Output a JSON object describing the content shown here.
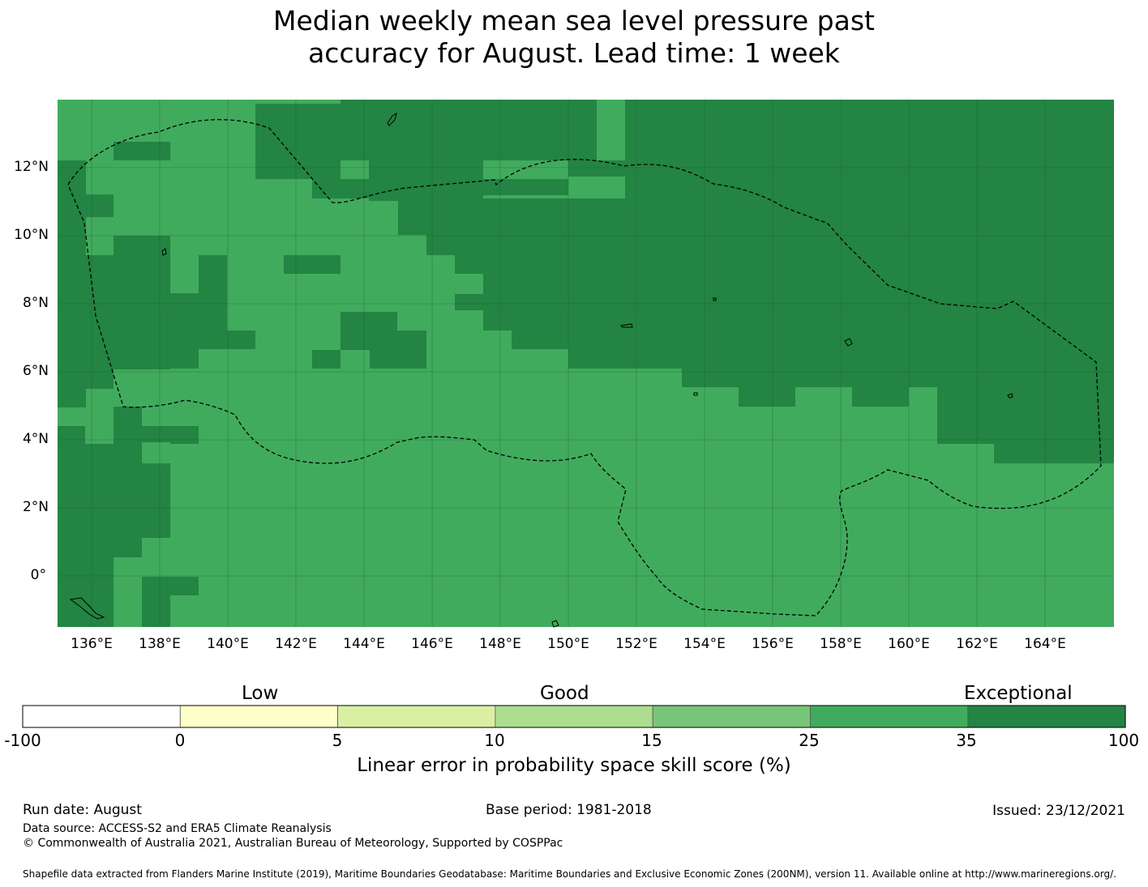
{
  "title": {
    "line1": "Median weekly mean sea level pressure past",
    "line2": "accuracy for August. Lead time: 1 week"
  },
  "map": {
    "extent": {
      "lon_min": 135,
      "lon_max": 166,
      "lat_min": -1.5,
      "lat_max": 14
    },
    "colors": {
      "good": "#41ab5d",
      "exceptional": "#238443"
    },
    "lat_ticks": [
      "12°N",
      "10°N",
      "8°N",
      "6°N",
      "4°N",
      "2°N",
      "0°"
    ],
    "lon_ticks": [
      "136°E",
      "138°E",
      "140°E",
      "142°E",
      "144°E",
      "146°E",
      "148°E",
      "150°E",
      "152°E",
      "154°E",
      "156°E",
      "158°E",
      "160°E",
      "162°E",
      "164°E"
    ],
    "region_legend": []
  },
  "colorbar": {
    "categories": [
      "Low",
      "Good",
      "Exceptional"
    ],
    "ticks": [
      "-100",
      "0",
      "5",
      "10",
      "15",
      "25",
      "35",
      "100"
    ],
    "colors": [
      "#ffffff",
      "#ffffcc",
      "#d9f0a3",
      "#addd8e",
      "#78c679",
      "#41ab5d",
      "#238443"
    ],
    "label": "Linear error in probability space skill score (%)"
  },
  "footer": {
    "run_date": "Run date: August",
    "base_period": "Base period: 1981-2018",
    "issued": "Issued: 23/12/2021",
    "data_source": "Data source: ACCESS-S2 and ERA5 Climate Reanalysis",
    "copyright": "© Commonwealth of Australia 2021, Australian Bureau of Meteorology, Supported by COSPPac",
    "shapefile": "Shapefile data extracted from Flanders Marine Institute (2019), Maritime Boundaries Geodatabase: Maritime Boundaries and Exclusive Economic Zones (200NM), version 11. Available online at http://www.marineregions.org/."
  }
}
